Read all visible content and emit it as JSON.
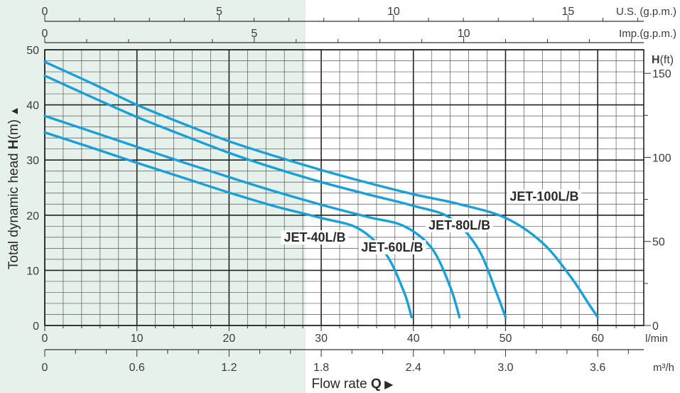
{
  "chart_data": {
    "type": "line",
    "title": "",
    "xlabel_prefix": "Flow rate ",
    "xlabel_bold": "Q",
    "xlabel_arrow": "▶",
    "ylabel_prefix": "Total dynamic head ",
    "ylabel_bold": "H",
    "ylabel_suffix": "(m)",
    "ylabel_arrow": "▲",
    "x_unit": "l/min",
    "xlim": [
      0,
      65
    ],
    "ylim": [
      0,
      50
    ],
    "grid": true,
    "axes": {
      "lmin": {
        "unit": "l/min",
        "ticks": [
          0,
          10,
          20,
          30,
          40,
          50,
          60
        ]
      },
      "m3h": {
        "unit": "m³/h",
        "ticks": [
          0,
          0.6,
          1.2,
          1.8,
          2.4,
          3.0,
          3.6
        ],
        "tick_labels": [
          "0",
          "0.6",
          "1.2",
          "1.8",
          "2.4",
          "3.0",
          "3.6"
        ]
      },
      "usgpm": {
        "unit": "U.S. (g.p.m.)",
        "ticks": [
          0,
          5,
          10,
          15
        ]
      },
      "impgpm": {
        "unit": "Imp.(g.p.m.)",
        "ticks": [
          0,
          5,
          10
        ]
      },
      "hm": {
        "unit": "(m)",
        "ticks": [
          0,
          10,
          20,
          30,
          40,
          50
        ]
      },
      "hft": {
        "unit_bold": "H",
        "unit": "(ft)",
        "ticks": [
          0,
          50,
          100,
          150
        ]
      }
    },
    "series": [
      {
        "name": "JET-40L/B",
        "x": [
          0,
          5,
          10,
          15,
          20,
          25,
          30,
          34,
          37,
          39,
          39.8
        ],
        "y": [
          35,
          32.3,
          29.5,
          26.8,
          24.1,
          21.6,
          19.5,
          17.6,
          13,
          6,
          1.5
        ]
      },
      {
        "name": "JET-60L/B",
        "x": [
          0,
          5,
          10,
          15,
          20,
          25,
          30,
          35,
          39,
          42,
          44,
          45
        ],
        "y": [
          38,
          35.2,
          32.4,
          29.6,
          26.9,
          24.3,
          21.9,
          19.7,
          18,
          14,
          7,
          1.5
        ]
      },
      {
        "name": "JET-80L/B",
        "x": [
          0,
          5,
          10,
          15,
          20,
          25,
          30,
          35,
          40,
          44,
          47,
          49,
          50
        ],
        "y": [
          45.3,
          41.5,
          37.8,
          34.5,
          31.3,
          28.5,
          26,
          23.8,
          21.7,
          19.5,
          14,
          6,
          1.5
        ]
      },
      {
        "name": "JET-100L/B",
        "x": [
          0,
          5,
          10,
          15,
          20,
          25,
          30,
          35,
          40,
          45,
          50,
          54,
          57,
          59,
          60
        ],
        "y": [
          47.8,
          44,
          40,
          36.6,
          33.4,
          30.7,
          28.2,
          25.9,
          23.8,
          22,
          19.5,
          15,
          9,
          4,
          1.5
        ]
      }
    ],
    "colors": {
      "curve": "#1aa0d8",
      "shade": "#e6f1eb"
    }
  }
}
